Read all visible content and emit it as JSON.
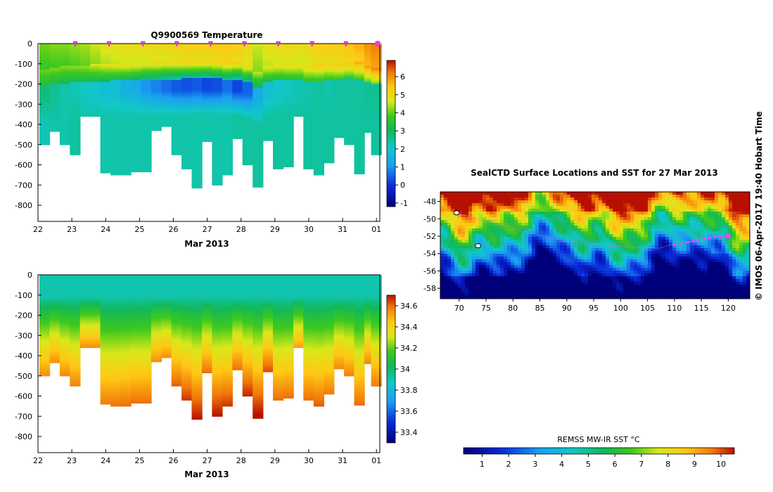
{
  "chart_data": [
    {
      "type": "heatmap",
      "title": "Q9900569  Temperature",
      "xlabel": "Mar 2013",
      "ylabel": "",
      "x_ticks": [
        "22",
        "23",
        "24",
        "25",
        "26",
        "27",
        "28",
        "29",
        "30",
        "31",
        "01"
      ],
      "y_ticks": [
        "0",
        "-100",
        "-200",
        "-300",
        "-400",
        "-500",
        "-600",
        "-700",
        "-800"
      ],
      "xlim": [
        22,
        32.1
      ],
      "ylim": [
        -880,
        0
      ],
      "colorbar": {
        "ticks": [
          "6",
          "5",
          "4",
          "3",
          "2",
          "1",
          "0",
          "-1"
        ],
        "range": [
          -1.2,
          6.9
        ]
      },
      "profile_markers_x": [
        23,
        24,
        25,
        26,
        27,
        28,
        29,
        30,
        31,
        32
      ],
      "series": [
        {
          "name": "",
          "x": [
            22.2,
            22.5,
            22.8,
            23.1,
            23.4,
            23.7,
            24.0,
            24.3,
            24.6,
            24.9,
            25.2,
            25.5,
            25.8,
            26.1,
            26.4,
            26.7,
            27.0,
            27.3,
            27.6,
            27.9,
            28.2,
            28.5,
            28.8,
            29.1,
            29.4,
            29.7,
            30.0,
            30.3,
            30.6,
            30.9,
            31.2,
            31.5,
            31.8,
            32.0
          ],
          "max_depth": [
            -500,
            -435,
            -500,
            -550,
            -360,
            -360,
            -640,
            -650,
            -650,
            -635,
            -635,
            -430,
            -410,
            -550,
            -620,
            -715,
            -485,
            -700,
            -650,
            -470,
            -600,
            -710,
            -480,
            -620,
            -610,
            -360,
            -620,
            -650,
            -590,
            -465,
            -500,
            -645,
            -440,
            -550
          ],
          "mixed_layer_depth": [
            -130,
            -120,
            -115,
            -110,
            -108,
            -105,
            -103,
            -100,
            -100,
            -98,
            -96,
            -95,
            -93,
            -92,
            -90,
            -88,
            -88,
            -90,
            -92,
            -95,
            -110,
            -140,
            -110,
            -100,
            -98,
            -100,
            -110,
            -105,
            -100,
            -98,
            -90,
            -95,
            -110,
            -120
          ],
          "surface_value": [
            4.1,
            4.2,
            4.2,
            4.3,
            4.4,
            4.6,
            4.8,
            4.9,
            5.0,
            5.0,
            5.0,
            5.1,
            5.1,
            5.2,
            5.3,
            5.3,
            5.3,
            5.4,
            5.5,
            5.3,
            5.1,
            4.6,
            4.9,
            5.0,
            5.1,
            5.0,
            5.1,
            5.3,
            5.3,
            5.4,
            5.5,
            5.7,
            6.0,
            6.2
          ],
          "deep_value": [
            2.2,
            2.3,
            2.3,
            2.4,
            2.3,
            2.3,
            2.3,
            2.3,
            2.3,
            2.3,
            2.3,
            2.3,
            2.3,
            2.3,
            2.3,
            2.3,
            2.3,
            2.3,
            2.3,
            2.4,
            2.4,
            2.4,
            2.4,
            2.4,
            2.4,
            2.4,
            2.4,
            2.4,
            2.4,
            2.4,
            2.4,
            2.4,
            2.4,
            2.4
          ],
          "min_value": [
            2.7,
            2.5,
            2.3,
            2.2,
            2.1,
            2.0,
            1.8,
            1.8,
            1.5,
            1.4,
            1.0,
            0.8,
            0.6,
            0.4,
            0.3,
            0.4,
            0.2,
            0.3,
            0.6,
            0.2,
            0.5,
            1.4,
            1.8,
            2.0,
            2.1,
            2.2,
            2.3,
            2.4,
            2.3,
            2.4,
            2.4,
            2.4,
            2.5,
            2.5
          ]
        }
      ]
    },
    {
      "type": "heatmap",
      "title": "",
      "xlabel": "Mar 2013",
      "ylabel": "",
      "x_ticks": [
        "22",
        "23",
        "24",
        "25",
        "26",
        "27",
        "28",
        "29",
        "30",
        "31",
        "01"
      ],
      "y_ticks": [
        "0",
        "-100",
        "-200",
        "-300",
        "-400",
        "-500",
        "-600",
        "-700",
        "-800"
      ],
      "xlim": [
        22,
        32.1
      ],
      "ylim": [
        -880,
        0
      ],
      "colorbar": {
        "ticks": [
          "34.6",
          "34.4",
          "34.2",
          "34",
          "33.8",
          "33.6",
          "33.4"
        ],
        "range": [
          33.3,
          34.7
        ]
      },
      "series": [
        {
          "name": "",
          "x": [
            22.2,
            22.5,
            22.8,
            23.1,
            23.4,
            23.7,
            24.0,
            24.3,
            24.6,
            24.9,
            25.2,
            25.5,
            25.8,
            26.1,
            26.4,
            26.7,
            27.0,
            27.3,
            27.6,
            27.9,
            28.2,
            28.5,
            28.8,
            29.1,
            29.4,
            29.7,
            30.0,
            30.3,
            30.6,
            30.9,
            31.2,
            31.5,
            31.8,
            32.0
          ],
          "max_depth": [
            -500,
            -435,
            -500,
            -550,
            -360,
            -360,
            -640,
            -650,
            -650,
            -635,
            -635,
            -430,
            -410,
            -550,
            -620,
            -715,
            -485,
            -700,
            -650,
            -470,
            -600,
            -710,
            -480,
            -620,
            -610,
            -360,
            -620,
            -650,
            -590,
            -465,
            -500,
            -645,
            -440,
            -550
          ],
          "surface_value": [
            33.9,
            33.9,
            33.9,
            33.9,
            33.9,
            33.9,
            33.9,
            33.9,
            33.9,
            33.9,
            33.9,
            33.9,
            33.9,
            33.9,
            33.9,
            33.9,
            33.9,
            33.9,
            33.9,
            33.9,
            33.9,
            33.9,
            33.9,
            33.9,
            33.9,
            33.9,
            33.9,
            33.9,
            33.9,
            33.9,
            33.9,
            33.9,
            33.9,
            33.9
          ],
          "deep_value": [
            34.55,
            34.55,
            34.56,
            34.57,
            34.55,
            34.55,
            34.58,
            34.59,
            34.6,
            34.6,
            34.6,
            34.55,
            34.55,
            34.62,
            34.66,
            34.7,
            34.6,
            34.7,
            34.66,
            34.6,
            34.68,
            34.72,
            34.64,
            34.6,
            34.6,
            34.52,
            34.6,
            34.62,
            34.58,
            34.56,
            34.57,
            34.6,
            34.56,
            34.58
          ]
        }
      ]
    },
    {
      "type": "heatmap",
      "title": "SealCTD Surface Locations and SST for 27 Mar 2013",
      "xlabel": "",
      "ylabel": "",
      "x_ticks": [
        "70",
        "75",
        "80",
        "85",
        "90",
        "95",
        "100",
        "105",
        "110",
        "115",
        "120"
      ],
      "y_ticks": [
        "-48",
        "-50",
        "-52",
        "-54",
        "-56",
        "-58"
      ],
      "xlim": [
        66.5,
        124
      ],
      "ylim": [
        -59.2,
        -46.9
      ],
      "colorbar": {
        "label": "REMSS MW-IR SST °C",
        "ticks": [
          "1",
          "2",
          "3",
          "4",
          "5",
          "6",
          "7",
          "8",
          "9",
          "10"
        ],
        "range": [
          0.3,
          10.5
        ]
      },
      "track": {
        "x": [
          69.5,
          72,
          75,
          79,
          83,
          87,
          91,
          95,
          99,
          103,
          107,
          110,
          112,
          114,
          116,
          118,
          120
        ],
        "y": [
          -49.3,
          -49.8,
          -50.3,
          -50.9,
          -51.6,
          -52.2,
          -52.7,
          -53.0,
          -53.2,
          -53.3,
          -53.4,
          -52.9,
          -52.7,
          -52.5,
          -52.3,
          -52.1,
          -52.0
        ]
      },
      "recent_positions": {
        "x": [
          110,
          111,
          112.5,
          113.5,
          114.5,
          115.5,
          116.5,
          117.5,
          118.5,
          119.5,
          120
        ],
        "y": [
          -53.0,
          -52.9,
          -52.7,
          -52.6,
          -52.4,
          -52.3,
          -52.2,
          -52.1,
          -52.1,
          -52.0,
          -52.0
        ]
      },
      "islands": [
        {
          "x": 69.5,
          "y": -49.3
        },
        {
          "x": 73.5,
          "y": -53.1
        }
      ]
    }
  ],
  "credit": "©  IMOS 06-Apr-2017 19:40 Hobart Time"
}
